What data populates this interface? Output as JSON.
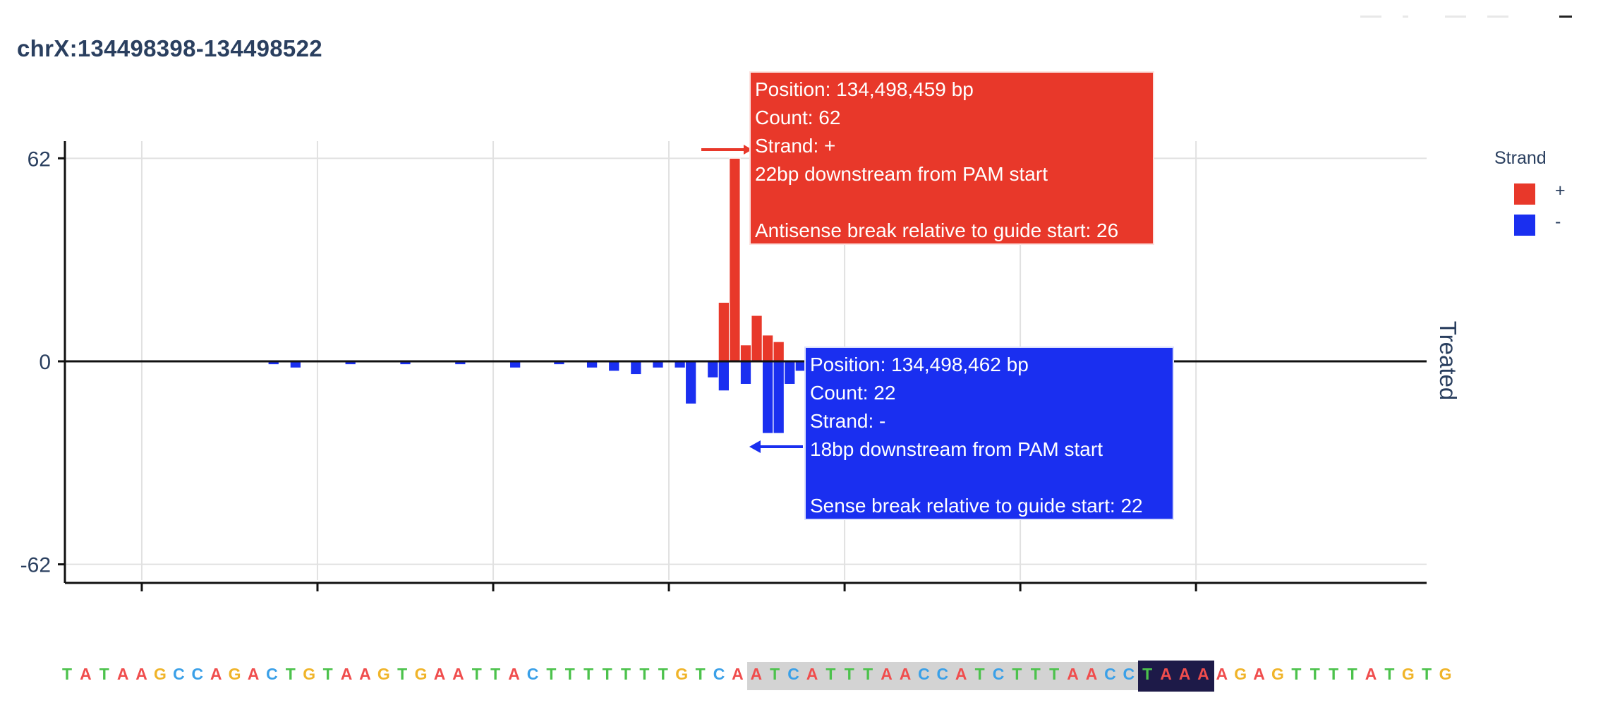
{
  "title": "chrX:134498398-134498522",
  "chart_data": {
    "type": "bar",
    "title": "chrX:134498398-134498522",
    "ylim": [
      -66,
      66
    ],
    "ytick_labels": [
      "62",
      "0",
      "-62"
    ],
    "xlim": [
      134498398,
      134498522
    ],
    "x_gridlines": [
      134498405,
      134498421,
      134498437,
      134498453,
      134498469,
      134498485,
      134498501
    ],
    "side_label": "Treated",
    "legend": {
      "title": "Strand",
      "position": "top-right",
      "items": [
        {
          "label": "+",
          "color": "#e8382a"
        },
        {
          "label": "-",
          "color": "#1a2ff0"
        }
      ]
    },
    "series": [
      {
        "name": "+",
        "color": "#e8382a",
        "x": [
          134498458,
          134498459,
          134498460,
          134498461,
          134498462,
          134498463
        ],
        "values": [
          18,
          62,
          5,
          14,
          8,
          6
        ]
      },
      {
        "name": "-",
        "color": "#1a2ff0",
        "x": [
          134498417,
          134498419,
          134498424,
          134498429,
          134498434,
          134498439,
          134498443,
          134498446,
          134498448,
          134498450,
          134498452,
          134498454,
          134498455,
          134498457,
          134498458,
          134498460,
          134498462,
          134498463,
          134498464,
          134498465,
          134498466,
          134498467,
          134498468,
          134498469
        ],
        "values": [
          1,
          2,
          1,
          1,
          1,
          2,
          1,
          2,
          3,
          4,
          2,
          2,
          13,
          5,
          9,
          7,
          22,
          22,
          7,
          3,
          2,
          2,
          2,
          2
        ]
      }
    ],
    "annotations": [
      {
        "color": "#e8382a",
        "lines": [
          "Position: 134,498,459 bp",
          "Count: 62",
          "Strand: +",
          "22bp downstream from PAM start",
          "",
          "Antisense break relative to guide start: 26"
        ]
      },
      {
        "color": "#1a2ff0",
        "lines": [
          "Position: 134,498,462 bp",
          "Count: 22",
          "Strand: -",
          "18bp downstream from PAM start",
          "",
          "Sense break relative to guide start: 22"
        ]
      }
    ]
  },
  "sequence": {
    "bases": "TATAAGCCAGACTGTAAGTGAATTACTTTTTTTGTCAATCATTTAACCATCTTTAACCTAAAAGAGTTTTATGTG",
    "guide_highlight_indices": [
      37,
      57
    ],
    "pam_highlight_indices": [
      58,
      61
    ],
    "colors": {
      "A": "#f04d4d",
      "C": "#3aa0e8",
      "G": "#f0b429",
      "T": "#4cc24c"
    }
  }
}
